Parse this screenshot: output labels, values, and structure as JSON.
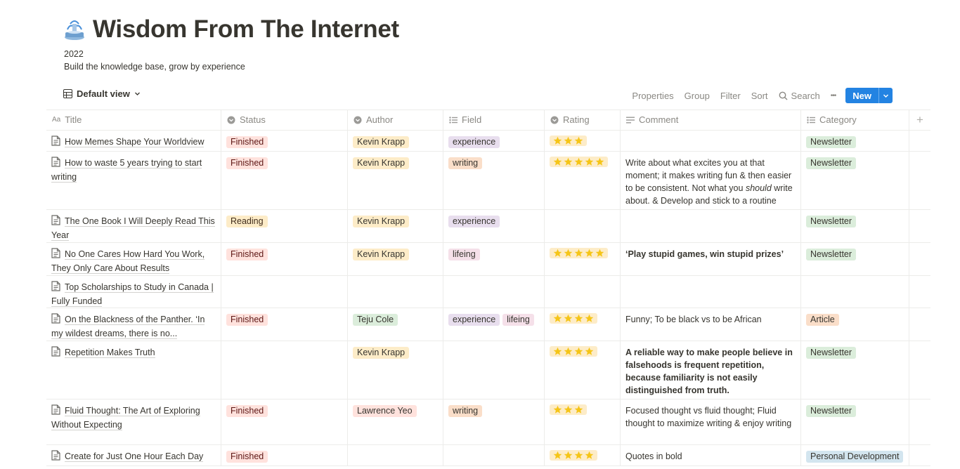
{
  "page": {
    "title": "Wisdom From The Internet",
    "icon": "fountain-icon",
    "year": "2022",
    "description": "Build the knowledge base, grow by experience"
  },
  "view": {
    "label": "Default view"
  },
  "toolbar": {
    "properties": "Properties",
    "group": "Group",
    "filter": "Filter",
    "sort": "Sort",
    "search": "Search",
    "more": "•••",
    "new": "New"
  },
  "columns": {
    "title": "Title",
    "status": "Status",
    "author": "Author",
    "field": "Field",
    "rating": "Rating",
    "comment": "Comment",
    "category": "Category",
    "add": "+"
  },
  "colors": {
    "accent": "#2383e2",
    "finished": "#ffe2dd",
    "finished_text": "#5d1715",
    "reading": "#fdecc8",
    "reading_text": "#402c1b",
    "author_kevin": "#fdecc8",
    "author_teju": "#dbeddb",
    "author_lawrence": "#ffe2dd",
    "experience": "#e8deee",
    "writing": "#fadec9",
    "lifeing": "#f5e0e9",
    "newsletter": "#dbeddb",
    "article": "#fadec9",
    "personal": "#d3e5ef",
    "star": "#f5c518"
  },
  "rows": [
    {
      "title": "How Memes Shape Your Worldview",
      "status": "Finished",
      "author": "Kevin Krapp",
      "fields": [
        "experience"
      ],
      "rating": 3,
      "comment": "",
      "category": "Newsletter",
      "height": 30
    },
    {
      "title": "How to waste 5 years trying to start writing",
      "status": "Finished",
      "author": "Kevin Krapp",
      "fields": [
        "writing"
      ],
      "rating": 5,
      "comment_parts": [
        "Write about what excites you at that moment; it makes writing fun & then easier to be consistent. Not what you ",
        "should",
        " write about. & Develop and stick to a routine"
      ],
      "category": "Newsletter",
      "height": 83
    },
    {
      "title": "The One Book I Will Deeply Read This Year",
      "status": "Reading",
      "author": "Kevin Krapp",
      "fields": [
        "experience"
      ],
      "rating": 0,
      "comment": "",
      "category": "Newsletter",
      "height": 47
    },
    {
      "title": "No One Cares How Hard You Work, They Only Care About Results",
      "status": "Finished",
      "author": "Kevin Krapp",
      "fields": [
        "lifeing"
      ],
      "rating": 5,
      "comment": "‘Play stupid games, win stupid prizes’",
      "comment_bold": true,
      "category": "Newsletter",
      "height": 47
    },
    {
      "title": "Top Scholarships to Study in Canada | Fully Funded",
      "status": "",
      "author": "",
      "fields": [],
      "rating": 0,
      "comment": "",
      "category": "",
      "height": 46
    },
    {
      "title": "On the Blackness of the Panther. ‘In my wildest dreams, there is no...",
      "status": "Finished",
      "author": "Teju Cole",
      "fields": [
        "experience",
        "lifeing"
      ],
      "rating": 4,
      "comment": "Funny; To be black vs to be African",
      "category": "Article",
      "height": 47
    },
    {
      "title": "Repetition Makes Truth",
      "status": "",
      "author": "Kevin Krapp",
      "fields": [],
      "rating": 4,
      "comment": "A reliable way to make people believe in falsehoods is frequent repetition, because familiarity is not easily distinguished from truth.",
      "comment_bold": true,
      "category": "Newsletter",
      "height": 83
    },
    {
      "title": "Fluid Thought: The Art of Exploring Without Expecting",
      "status": "Finished",
      "author": "Lawrence Yeo",
      "fields": [
        "writing"
      ],
      "rating": 3,
      "comment": "Focused thought vs fluid thought; Fluid thought to maximize writing & enjoy writing",
      "category": "Newsletter",
      "height": 65
    },
    {
      "title": "Create for Just One Hour Each Day",
      "status": "Finished",
      "author": "",
      "fields": [],
      "rating": 4,
      "comment": "Quotes in bold",
      "category": "Personal Development",
      "height": 30
    }
  ]
}
